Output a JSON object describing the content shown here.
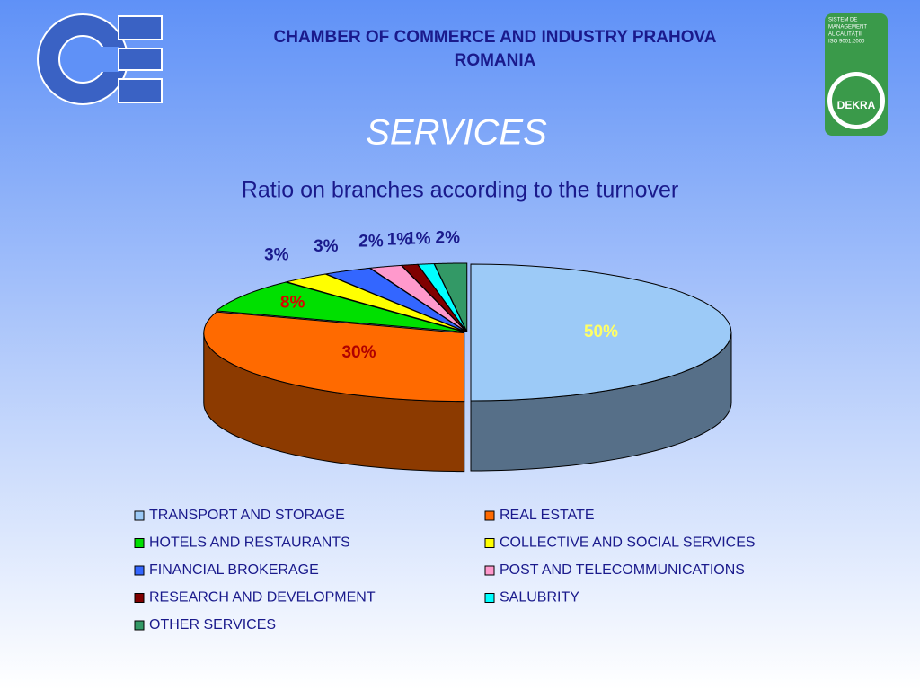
{
  "header": {
    "org_line1": "CHAMBER OF COMMERCE AND INDUSTRY PRAHOVA",
    "org_line2": "ROMANIA",
    "badge_lines": [
      "SISTEM DE",
      "MANAGEMENT",
      "AL CALITĂŢII",
      "ISO 9001:2000"
    ],
    "badge_brand": "DEKRA"
  },
  "chart_data": {
    "type": "pie",
    "title": "SERVICES",
    "subtitle": "Ratio on branches according to the turnover",
    "categories": [
      "TRANSPORT AND STORAGE",
      "REAL ESTATE",
      "HOTELS AND RESTAURANTS",
      "COLLECTIVE AND SOCIAL SERVICES",
      "FINANCIAL BROKERAGE",
      "POST AND TELECOMMUNICATIONS",
      "RESEARCH AND DEVELOPMENT",
      "SALUBRITY",
      "OTHER SERVICES"
    ],
    "values": [
      50,
      30,
      8,
      3,
      3,
      2,
      1,
      1,
      2
    ],
    "value_labels": [
      "50%",
      "30%",
      "8%",
      "3%",
      "3%",
      "2%",
      "1%",
      "1%",
      "2%"
    ],
    "colors": [
      "#9ccaf7",
      "#ff6a00",
      "#00e000",
      "#ffff00",
      "#3366ff",
      "#ff99cc",
      "#800000",
      "#00ffff",
      "#339966"
    ],
    "value_label_colors": [
      "#ffff66",
      "#b00000",
      "#dd0000",
      "#1a1a8c",
      "#1a1a8c",
      "#1a1a8c",
      "#1a1a8c",
      "#1a1a8c",
      "#1a1a8c"
    ],
    "annotation": "C"
  }
}
